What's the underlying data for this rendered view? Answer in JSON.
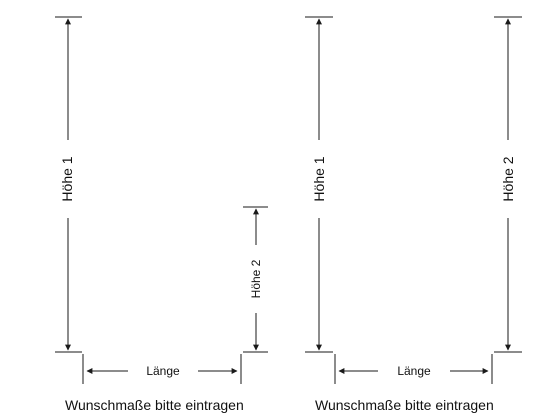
{
  "left_diagram": {
    "height1_label": "Höhe 1",
    "height2_label": "Höhe 2",
    "length_label": "Länge",
    "caption": "Wunschmaße bitte eintragen"
  },
  "right_diagram": {
    "height1_label": "Höhe 1",
    "height2_label": "Höhe 2",
    "length_label": "Länge",
    "caption": "Wunschmaße bitte eintragen"
  },
  "colors": {
    "line": "#1a1a1a",
    "text": "#111111"
  }
}
